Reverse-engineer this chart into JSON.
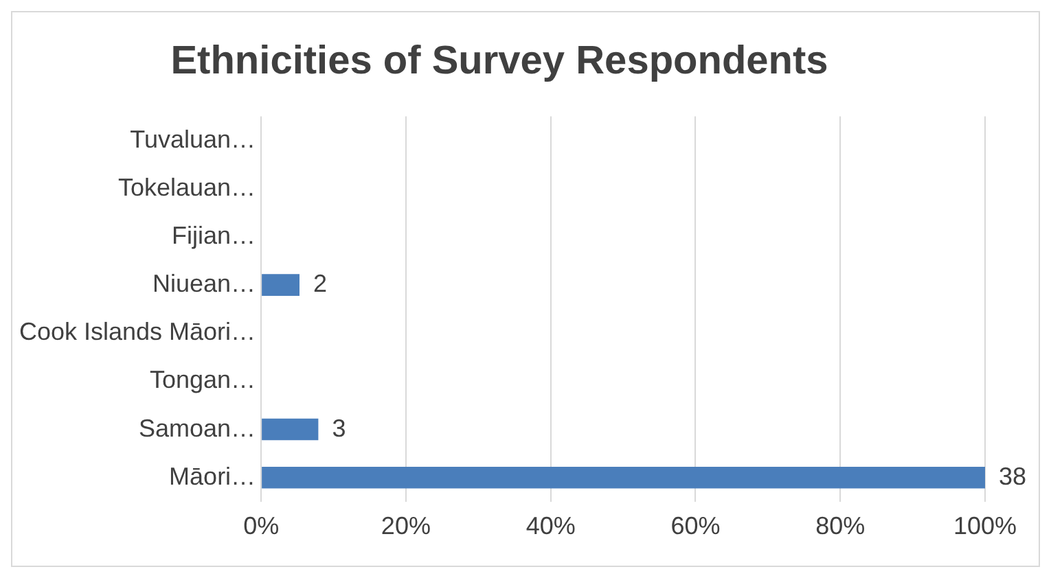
{
  "chart_data": {
    "type": "bar",
    "orientation": "horizontal",
    "title": "Ethnicities of Survey Respondents",
    "categories": [
      "Tuvaluan…",
      "Tokelauan…",
      "Fijian…",
      "Niuean…",
      "Cook Islands Māori…",
      "Tongan…",
      "Samoan…",
      "Māori…"
    ],
    "values": [
      0,
      0,
      0,
      5.3,
      0,
      0,
      7.9,
      100
    ],
    "color": "#4a7ebb",
    "xlim": [
      0,
      100
    ],
    "xticks": [
      {
        "value": 0,
        "label": "0%"
      },
      {
        "value": 20,
        "label": "20%"
      },
      {
        "value": 40,
        "label": "40%"
      },
      {
        "value": 60,
        "label": "60%"
      },
      {
        "value": 80,
        "label": "80%"
      },
      {
        "value": 100,
        "label": "100%"
      }
    ],
    "grid": "x",
    "annotations": [
      {
        "text": "2",
        "x": 5.3,
        "y": "Niuean…"
      },
      {
        "text": "3",
        "x": 7.9,
        "y": "Samoan…"
      },
      {
        "text": "38",
        "x": 100,
        "y": "Māori…"
      }
    ]
  }
}
